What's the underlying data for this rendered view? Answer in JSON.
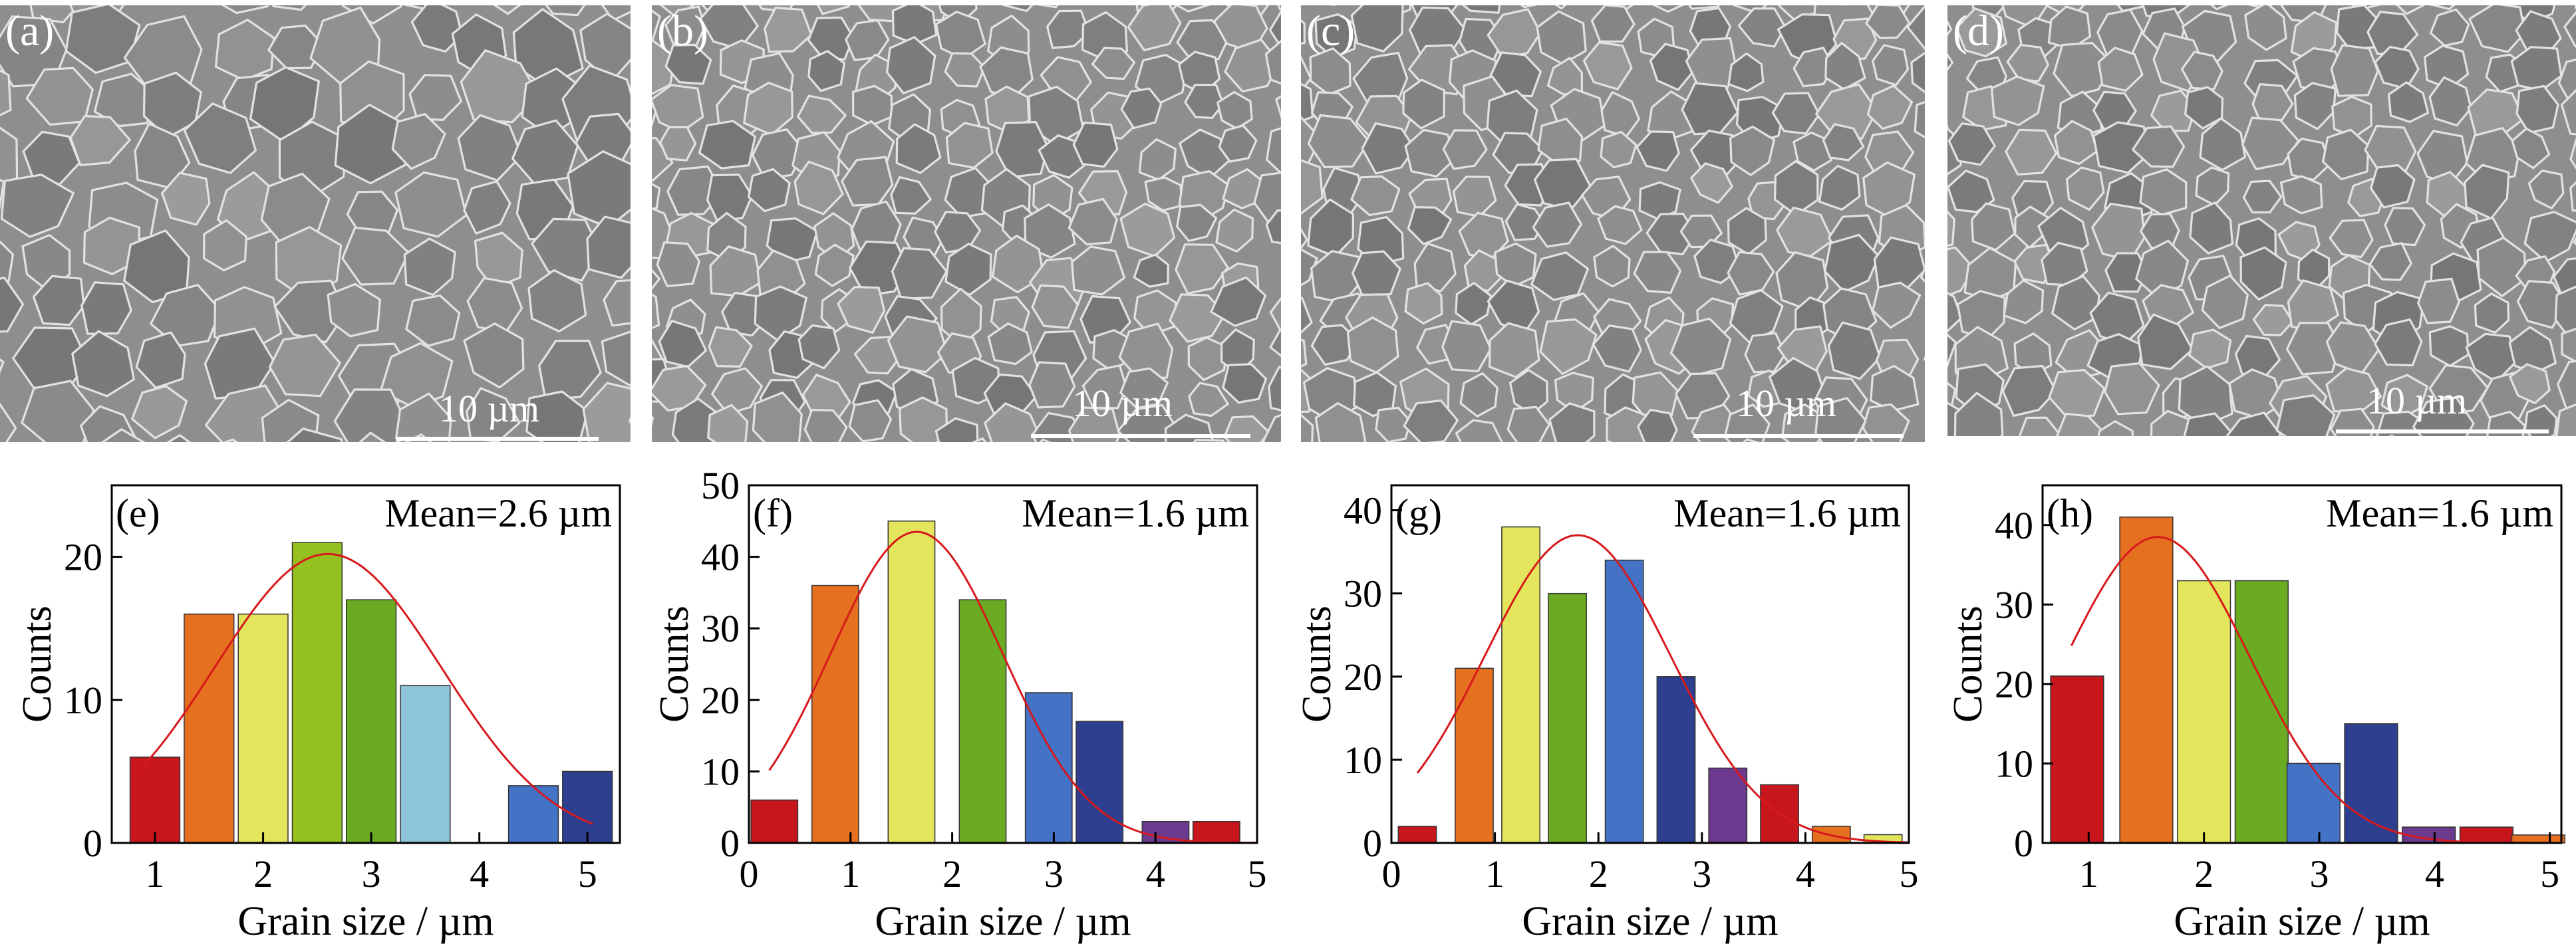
{
  "sem_panels": [
    {
      "letter": "(a)",
      "scale_label": "10 µm"
    },
    {
      "letter": "(b)",
      "scale_label": "10 µm"
    },
    {
      "letter": "(c)",
      "scale_label": "10 µm"
    },
    {
      "letter": "(d)",
      "scale_label": "10 µm"
    }
  ],
  "colors": {
    "red": "#c8161d",
    "orange": "#e57020",
    "yellow": "#e3e55c",
    "lightgreen": "#94c11f",
    "green": "#6aab23",
    "lightblue": "#8ec4d8",
    "blue": "#4472c4",
    "navy": "#2e3f8f",
    "purple": "#6b3a8f",
    "fit": "#d7191c"
  },
  "chart_data": [
    {
      "type": "bar",
      "panel_label": "(e)",
      "annotation": "Mean=2.6 µm",
      "xlabel": "Grain size / µm",
      "ylabel": "Counts",
      "xlim": [
        0.6,
        5.3
      ],
      "ylim": [
        0,
        25
      ],
      "xticks": [
        1,
        2,
        3,
        4,
        5
      ],
      "yticks": [
        0,
        10,
        20
      ],
      "bar_width": 0.5,
      "x": [
        1.0,
        1.5,
        2.0,
        2.5,
        3.0,
        3.5,
        4.0,
        4.5,
        5.0
      ],
      "values": [
        6,
        16,
        16,
        21,
        17,
        11,
        0,
        4,
        5
      ],
      "bar_colors": [
        "red",
        "orange",
        "yellow",
        "lightgreen",
        "green",
        "lightblue",
        "lightblue",
        "blue",
        "navy"
      ],
      "fit": {
        "mean": 2.6,
        "sigma": 1.05,
        "peak": 20.2,
        "from": 0.85,
        "to": 5.05
      }
    },
    {
      "type": "bar",
      "panel_label": "(f)",
      "annotation": "Mean=1.6 µm",
      "xlabel": "Grain size / µm",
      "ylabel": "Counts",
      "xlim": [
        0,
        5
      ],
      "ylim": [
        0,
        50
      ],
      "xticks": [
        0,
        1,
        2,
        3,
        4,
        5
      ],
      "yticks": [
        0,
        10,
        20,
        30,
        40,
        50
      ],
      "bar_width": 0.5,
      "x": [
        0.25,
        0.85,
        1.6,
        2.3,
        2.95,
        3.45,
        4.1,
        4.6
      ],
      "values": [
        6,
        36,
        45,
        34,
        21,
        17,
        3,
        3
      ],
      "bar_colors": [
        "red",
        "orange",
        "yellow",
        "green",
        "blue",
        "navy",
        "purple",
        "red"
      ],
      "fit": {
        "mean": 1.65,
        "sigma": 0.85,
        "peak": 43.5,
        "from": 0.2,
        "to": 5.0
      }
    },
    {
      "type": "bar",
      "panel_label": "(g)",
      "annotation": "Mean=1.6 µm",
      "xlabel": "Grain size / µm",
      "ylabel": "Counts",
      "xlim": [
        0,
        5
      ],
      "ylim": [
        0,
        43
      ],
      "xticks": [
        0,
        1,
        2,
        3,
        4,
        5
      ],
      "yticks": [
        0,
        10,
        20,
        30,
        40
      ],
      "bar_width": 0.4,
      "x": [
        0.25,
        0.8,
        1.25,
        1.7,
        2.25,
        2.75,
        3.25,
        3.75,
        4.25,
        4.75
      ],
      "values": [
        2,
        21,
        38,
        30,
        34,
        20,
        9,
        7,
        2,
        1
      ],
      "bar_colors": [
        "red",
        "orange",
        "yellow",
        "green",
        "blue",
        "navy",
        "purple",
        "red",
        "orange",
        "yellow"
      ],
      "fit": {
        "mean": 1.8,
        "sigma": 0.9,
        "peak": 37,
        "from": 0.25,
        "to": 5.0
      }
    },
    {
      "type": "bar",
      "panel_label": "(h)",
      "annotation": "Mean=1.6 µm",
      "xlabel": "Grain size / µm",
      "ylabel": "Counts",
      "xlim": [
        0.6,
        5.1
      ],
      "ylim": [
        0,
        45
      ],
      "xticks": [
        1,
        2,
        3,
        4,
        5
      ],
      "yticks": [
        0,
        10,
        20,
        30,
        40
      ],
      "bar_width": 0.5,
      "x": [
        0.9,
        1.5,
        2.0,
        2.5,
        2.95,
        3.45,
        3.95,
        4.45,
        4.9
      ],
      "values": [
        21,
        41,
        33,
        33,
        10,
        15,
        2,
        2,
        1
      ],
      "bar_colors": [
        "red",
        "orange",
        "yellow",
        "green",
        "blue",
        "navy",
        "purple",
        "red",
        "orange"
      ],
      "fit": {
        "mean": 1.6,
        "sigma": 0.8,
        "peak": 38.5,
        "from": 0.85,
        "to": 5.0
      }
    }
  ]
}
